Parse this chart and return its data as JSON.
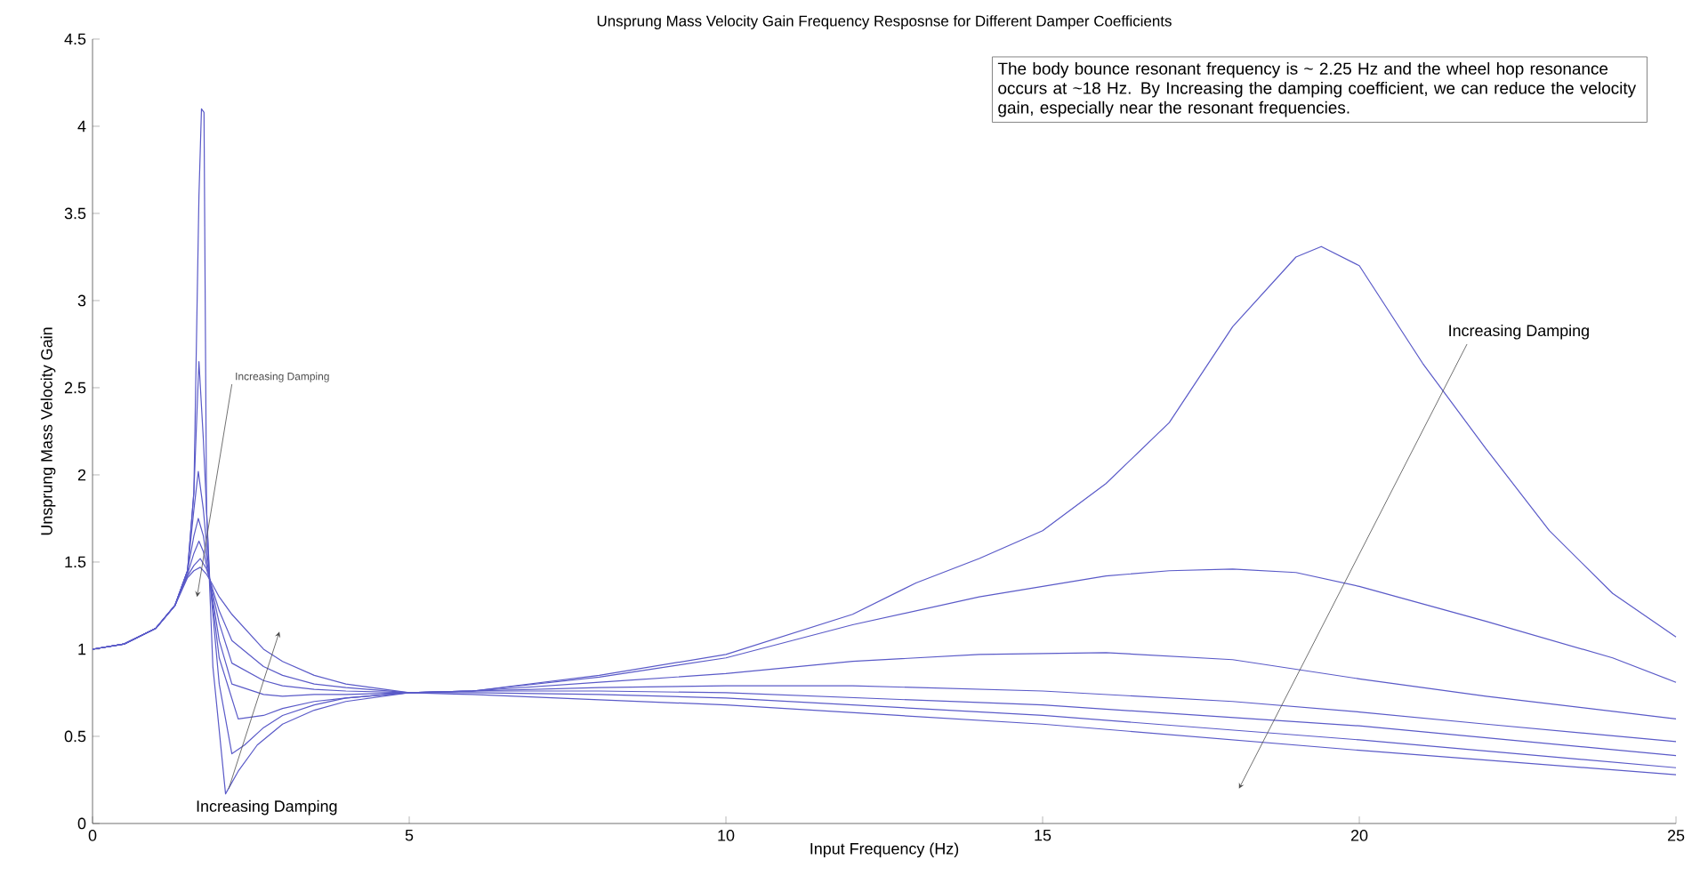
{
  "chart_data": {
    "type": "line",
    "title": "Unsprung Mass Velocity Gain Frequency Resposnse for Different Damper Coefficients",
    "xlabel": "Input Frequency (Hz)",
    "ylabel": "Unsprung Mass Velocity Gain",
    "xlim": [
      0,
      25
    ],
    "ylim": [
      0,
      4.5
    ],
    "xticks": [
      0,
      5,
      10,
      15,
      20,
      25
    ],
    "yticks": [
      0,
      0.5,
      1,
      1.5,
      2,
      2.5,
      3,
      3.5,
      4,
      4.5
    ],
    "grid": false,
    "line_style": "solid",
    "marker": "none",
    "annotations": [
      "The body bounce resonant frequency is ~ 2.25 Hz and the wheel hop resonance occurs at ~18 Hz.  By Increasing the damping coefficient, we can reduce the velocity gain, especially near the resonant frequencies.",
      "Increasing Damping",
      "Increasing Damping",
      "Increasing Damping"
    ],
    "series": [
      {
        "color": "#5a5ac8",
        "x": [
          0,
          0.5,
          1,
          1.3,
          1.5,
          1.6,
          1.68,
          1.72,
          1.76,
          1.8,
          1.9,
          2.1,
          2.3,
          2.6,
          3,
          3.5,
          4,
          5,
          6,
          8,
          10,
          12,
          13,
          14,
          15,
          16,
          17,
          18,
          19,
          19.4,
          20,
          21,
          22,
          23,
          24,
          25
        ],
        "values": [
          1,
          1.03,
          1.12,
          1.25,
          1.45,
          1.9,
          3.6,
          4.1,
          4.08,
          1.8,
          0.9,
          0.17,
          0.3,
          0.45,
          0.57,
          0.65,
          0.7,
          0.75,
          0.76,
          0.85,
          0.97,
          1.2,
          1.38,
          1.52,
          1.68,
          1.95,
          2.3,
          2.85,
          3.25,
          3.31,
          3.2,
          2.64,
          2.15,
          1.68,
          1.32,
          1.07
        ]
      },
      {
        "color": "#5a5ac8",
        "x": [
          0,
          0.5,
          1,
          1.3,
          1.5,
          1.6,
          1.68,
          1.75,
          1.85,
          2.0,
          2.2,
          2.4,
          2.7,
          3,
          3.5,
          4,
          5,
          6,
          8,
          10,
          12,
          14,
          16,
          17,
          18,
          19,
          20,
          22,
          24,
          25
        ],
        "values": [
          1,
          1.03,
          1.12,
          1.25,
          1.45,
          1.9,
          2.65,
          2.2,
          1.4,
          0.8,
          0.4,
          0.45,
          0.55,
          0.62,
          0.68,
          0.72,
          0.75,
          0.76,
          0.84,
          0.95,
          1.14,
          1.3,
          1.42,
          1.45,
          1.46,
          1.44,
          1.36,
          1.16,
          0.95,
          0.81
        ]
      },
      {
        "color": "#5a5ac8",
        "x": [
          0,
          0.5,
          1,
          1.3,
          1.5,
          1.6,
          1.67,
          1.75,
          1.85,
          2.0,
          2.3,
          2.7,
          3,
          3.5,
          4,
          5,
          6,
          8,
          10,
          12,
          14,
          16,
          18,
          20,
          22,
          25
        ],
        "values": [
          1,
          1.03,
          1.12,
          1.25,
          1.45,
          1.8,
          2.02,
          1.8,
          1.4,
          0.95,
          0.6,
          0.62,
          0.66,
          0.7,
          0.72,
          0.75,
          0.76,
          0.81,
          0.86,
          0.93,
          0.97,
          0.98,
          0.94,
          0.83,
          0.73,
          0.6
        ]
      },
      {
        "color": "#5a5ac8",
        "x": [
          0,
          0.5,
          1,
          1.3,
          1.5,
          1.6,
          1.67,
          1.75,
          1.85,
          2.0,
          2.2,
          2.7,
          3,
          3.5,
          4,
          5,
          6,
          8,
          10,
          12,
          15,
          18,
          20,
          22,
          25
        ],
        "values": [
          1,
          1.03,
          1.12,
          1.25,
          1.45,
          1.65,
          1.75,
          1.65,
          1.4,
          1.05,
          0.8,
          0.74,
          0.73,
          0.74,
          0.74,
          0.75,
          0.76,
          0.78,
          0.79,
          0.79,
          0.76,
          0.7,
          0.64,
          0.57,
          0.47
        ]
      },
      {
        "color": "#5a5ac8",
        "x": [
          0,
          0.5,
          1,
          1.3,
          1.5,
          1.6,
          1.68,
          1.75,
          1.85,
          2.0,
          2.2,
          2.7,
          3,
          3.5,
          4,
          5,
          6,
          8,
          10,
          15,
          20,
          25
        ],
        "values": [
          1,
          1.03,
          1.12,
          1.25,
          1.43,
          1.55,
          1.62,
          1.56,
          1.4,
          1.15,
          0.92,
          0.82,
          0.79,
          0.77,
          0.76,
          0.75,
          0.76,
          0.76,
          0.75,
          0.68,
          0.56,
          0.39
        ]
      },
      {
        "color": "#5a5ac8",
        "x": [
          0,
          0.5,
          1,
          1.3,
          1.5,
          1.6,
          1.7,
          1.8,
          1.85,
          2.0,
          2.2,
          2.7,
          3,
          3.5,
          4,
          5,
          6,
          8,
          10,
          15,
          20,
          25
        ],
        "values": [
          1,
          1.03,
          1.12,
          1.25,
          1.42,
          1.48,
          1.52,
          1.46,
          1.4,
          1.22,
          1.05,
          0.9,
          0.85,
          0.8,
          0.78,
          0.75,
          0.75,
          0.74,
          0.72,
          0.62,
          0.48,
          0.32
        ]
      },
      {
        "color": "#5a5ac8",
        "x": [
          0,
          0.5,
          1,
          1.3,
          1.5,
          1.6,
          1.7,
          1.8,
          1.85,
          2.0,
          2.2,
          2.7,
          3,
          3.5,
          4,
          5,
          6,
          8,
          10,
          15,
          20,
          25
        ],
        "values": [
          1,
          1.03,
          1.12,
          1.25,
          1.41,
          1.45,
          1.47,
          1.43,
          1.4,
          1.3,
          1.2,
          1.0,
          0.93,
          0.85,
          0.8,
          0.75,
          0.74,
          0.71,
          0.68,
          0.57,
          0.42,
          0.28
        ]
      }
    ]
  }
}
